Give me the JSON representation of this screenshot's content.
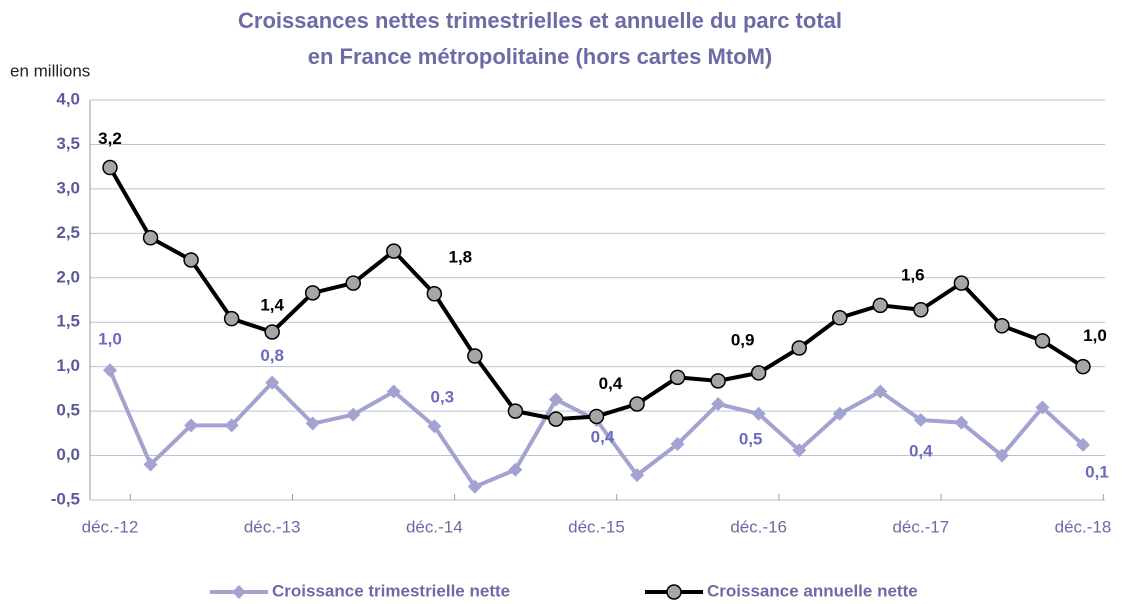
{
  "chart_data": {
    "type": "line",
    "title": "Croissances nettes trimestrielles et annuelle du parc total",
    "subtitle": "en France métropolitaine (hors cartes MtoM)",
    "y_label": "en millions",
    "categories": [
      "déc.-12",
      null,
      null,
      null,
      "déc.-13",
      null,
      null,
      null,
      "déc.-14",
      null,
      null,
      null,
      "déc.-15",
      null,
      null,
      null,
      "déc.-16",
      null,
      null,
      null,
      "déc.-17",
      null,
      null,
      null,
      "déc.-18"
    ],
    "series": [
      {
        "name": "Croissance trimestrielle nette",
        "color": "#a3a3d1",
        "marker": "diamond",
        "values": [
          0.96,
          -0.1,
          0.34,
          0.34,
          0.82,
          0.36,
          0.46,
          0.72,
          0.33,
          -0.35,
          -0.16,
          0.63,
          0.4,
          -0.22,
          0.13,
          0.58,
          0.47,
          0.06,
          0.47,
          0.72,
          0.4,
          0.37,
          0.0,
          0.54,
          0.12
        ],
        "value_labels": [
          "1,0",
          null,
          null,
          null,
          "0,8",
          null,
          null,
          null,
          "0,3",
          null,
          null,
          null,
          "0,4",
          null,
          null,
          null,
          "0,5",
          null,
          null,
          null,
          "0,4",
          null,
          null,
          null,
          "0,1"
        ]
      },
      {
        "name": "Croissance annuelle nette",
        "color": "#000000",
        "marker": "circle",
        "values": [
          3.24,
          2.45,
          2.2,
          1.54,
          1.39,
          1.83,
          1.94,
          2.3,
          1.82,
          1.12,
          0.5,
          0.41,
          0.44,
          0.58,
          0.88,
          0.84,
          0.93,
          1.21,
          1.55,
          1.69,
          1.64,
          1.94,
          1.46,
          1.29,
          1.0
        ],
        "value_labels": [
          "3,2",
          null,
          null,
          null,
          "1,4",
          null,
          null,
          null,
          "1,8",
          null,
          null,
          null,
          "0,4",
          null,
          null,
          null,
          "0,9",
          null,
          null,
          null,
          "1,6",
          null,
          null,
          null,
          "1,0"
        ]
      }
    ],
    "ylim": [
      -0.5,
      4.0
    ],
    "yticks": [
      {
        "value": -0.5,
        "label": "-0,5"
      },
      {
        "value": 0,
        "label": "0,0"
      },
      {
        "value": 0.5,
        "label": "0,5"
      },
      {
        "value": 1,
        "label": "1,0"
      },
      {
        "value": 1.5,
        "label": "1,5"
      },
      {
        "value": 2,
        "label": "2,0"
      },
      {
        "value": 2.5,
        "label": "2,5"
      },
      {
        "value": 3,
        "label": "3,0"
      },
      {
        "value": 3.5,
        "label": "3,5"
      },
      {
        "value": 4,
        "label": "4,0"
      }
    ],
    "grid": true,
    "legend": "bottom"
  }
}
